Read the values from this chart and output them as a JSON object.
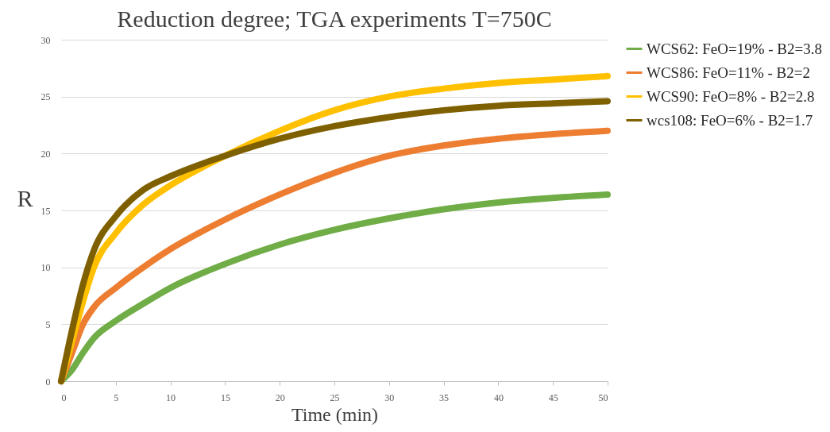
{
  "chart_data": {
    "type": "line",
    "title": "Reduction degree; TGA experiments T=750C",
    "xlabel": "Time (min)",
    "ylabel": "R",
    "x": [
      0,
      1,
      2,
      3,
      5,
      7.5,
      10,
      15,
      20,
      25,
      30,
      35,
      40,
      45,
      50
    ],
    "xlim": [
      0,
      50
    ],
    "xticks": [
      0,
      5,
      10,
      15,
      20,
      25,
      30,
      35,
      40,
      45,
      50
    ],
    "ylim": [
      0,
      30
    ],
    "yticks": [
      0,
      5,
      10,
      15,
      20,
      25,
      30
    ],
    "grid": "y",
    "legend": "right",
    "marker": "none",
    "line_style": "solid",
    "series": [
      {
        "name": "WCS62: FeO=19% - B2=3.8",
        "color": "#70ad47",
        "values": [
          0,
          1,
          2.5,
          3.8,
          5.3,
          6.8,
          8.2,
          10.3,
          12,
          13.3,
          14.3,
          15.1,
          15.7,
          16.1,
          16.4
        ]
      },
      {
        "name": "WCS86: FeO=11% - B2=2",
        "color": "#ed7d31",
        "values": [
          0,
          2.5,
          5,
          6.5,
          8.2,
          10,
          11.6,
          14.2,
          16.4,
          18.3,
          19.8,
          20.7,
          21.3,
          21.7,
          22
        ]
      },
      {
        "name": "WCS90: FeO=8% - B2=2.8",
        "color": "#ffc000",
        "values": [
          0,
          3.5,
          7,
          10,
          13,
          15.5,
          17.2,
          19.8,
          22,
          23.8,
          25,
          25.7,
          26.2,
          26.5,
          26.8
        ]
      },
      {
        "name": "wcs108: FeO=6% - B2=1.7",
        "color": "#7f6000",
        "values": [
          0,
          4.5,
          8.5,
          11.5,
          14.5,
          16.8,
          18,
          19.8,
          21.3,
          22.4,
          23.2,
          23.8,
          24.2,
          24.4,
          24.6
        ]
      }
    ]
  }
}
